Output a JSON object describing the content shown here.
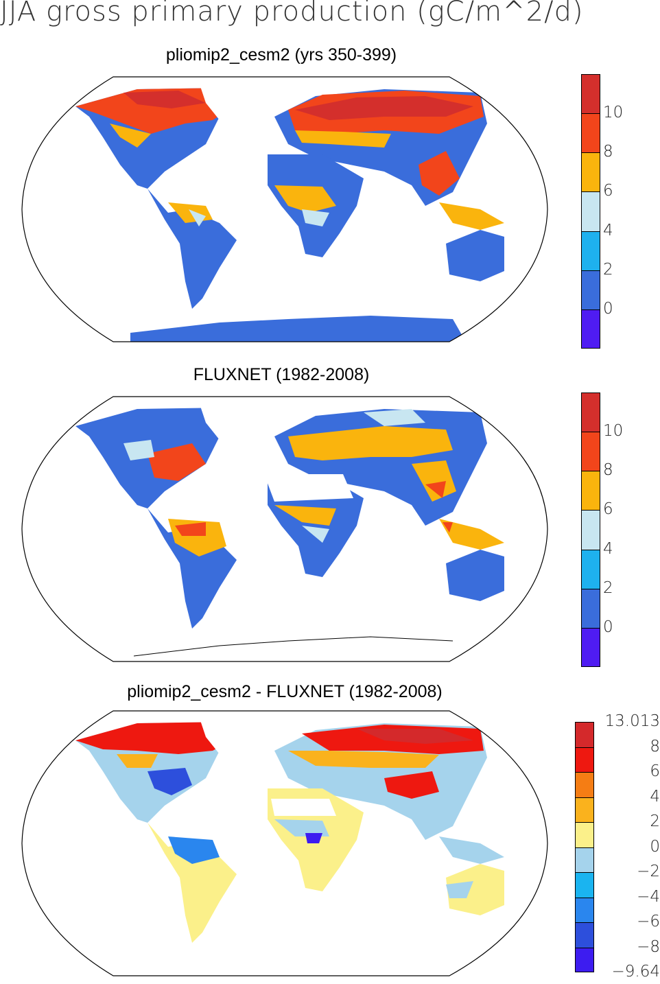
{
  "title": "JJA gross primary production (gC/m^2/d)",
  "panels": [
    {
      "id": "model",
      "title": "pliomip2_cesm2 (yrs 350-399)",
      "legend": {
        "colors": [
          "#4f1cf2",
          "#3a6ddb",
          "#1eb1ee",
          "#c8e6f1",
          "#fab40d",
          "#f2451b",
          "#d42f2c"
        ],
        "labels": [
          "0",
          "2",
          "4",
          "6",
          "8",
          "10"
        ]
      }
    },
    {
      "id": "obs",
      "title": "FLUXNET (1982-2008)",
      "legend": {
        "colors": [
          "#4f1cf2",
          "#3a6ddb",
          "#1eb1ee",
          "#c8e6f1",
          "#fab40d",
          "#f2451b",
          "#d42f2c"
        ],
        "labels": [
          "0",
          "2",
          "4",
          "6",
          "8",
          "10"
        ]
      }
    },
    {
      "id": "diff",
      "title": "pliomip2_cesm2 - FLUXNET (1982-2008)",
      "legend": {
        "colors": [
          "#3d1cf0",
          "#2d4fdc",
          "#2a86ee",
          "#1ab4f0",
          "#a5d3ec",
          "#fbf08a",
          "#fab21d",
          "#f57d14",
          "#ee1810",
          "#d4292b"
        ],
        "labels": [
          "−9.64",
          "−8",
          "−6",
          "−4",
          "−2",
          "0",
          "2",
          "4",
          "6",
          "8",
          "13.013"
        ]
      }
    }
  ]
}
